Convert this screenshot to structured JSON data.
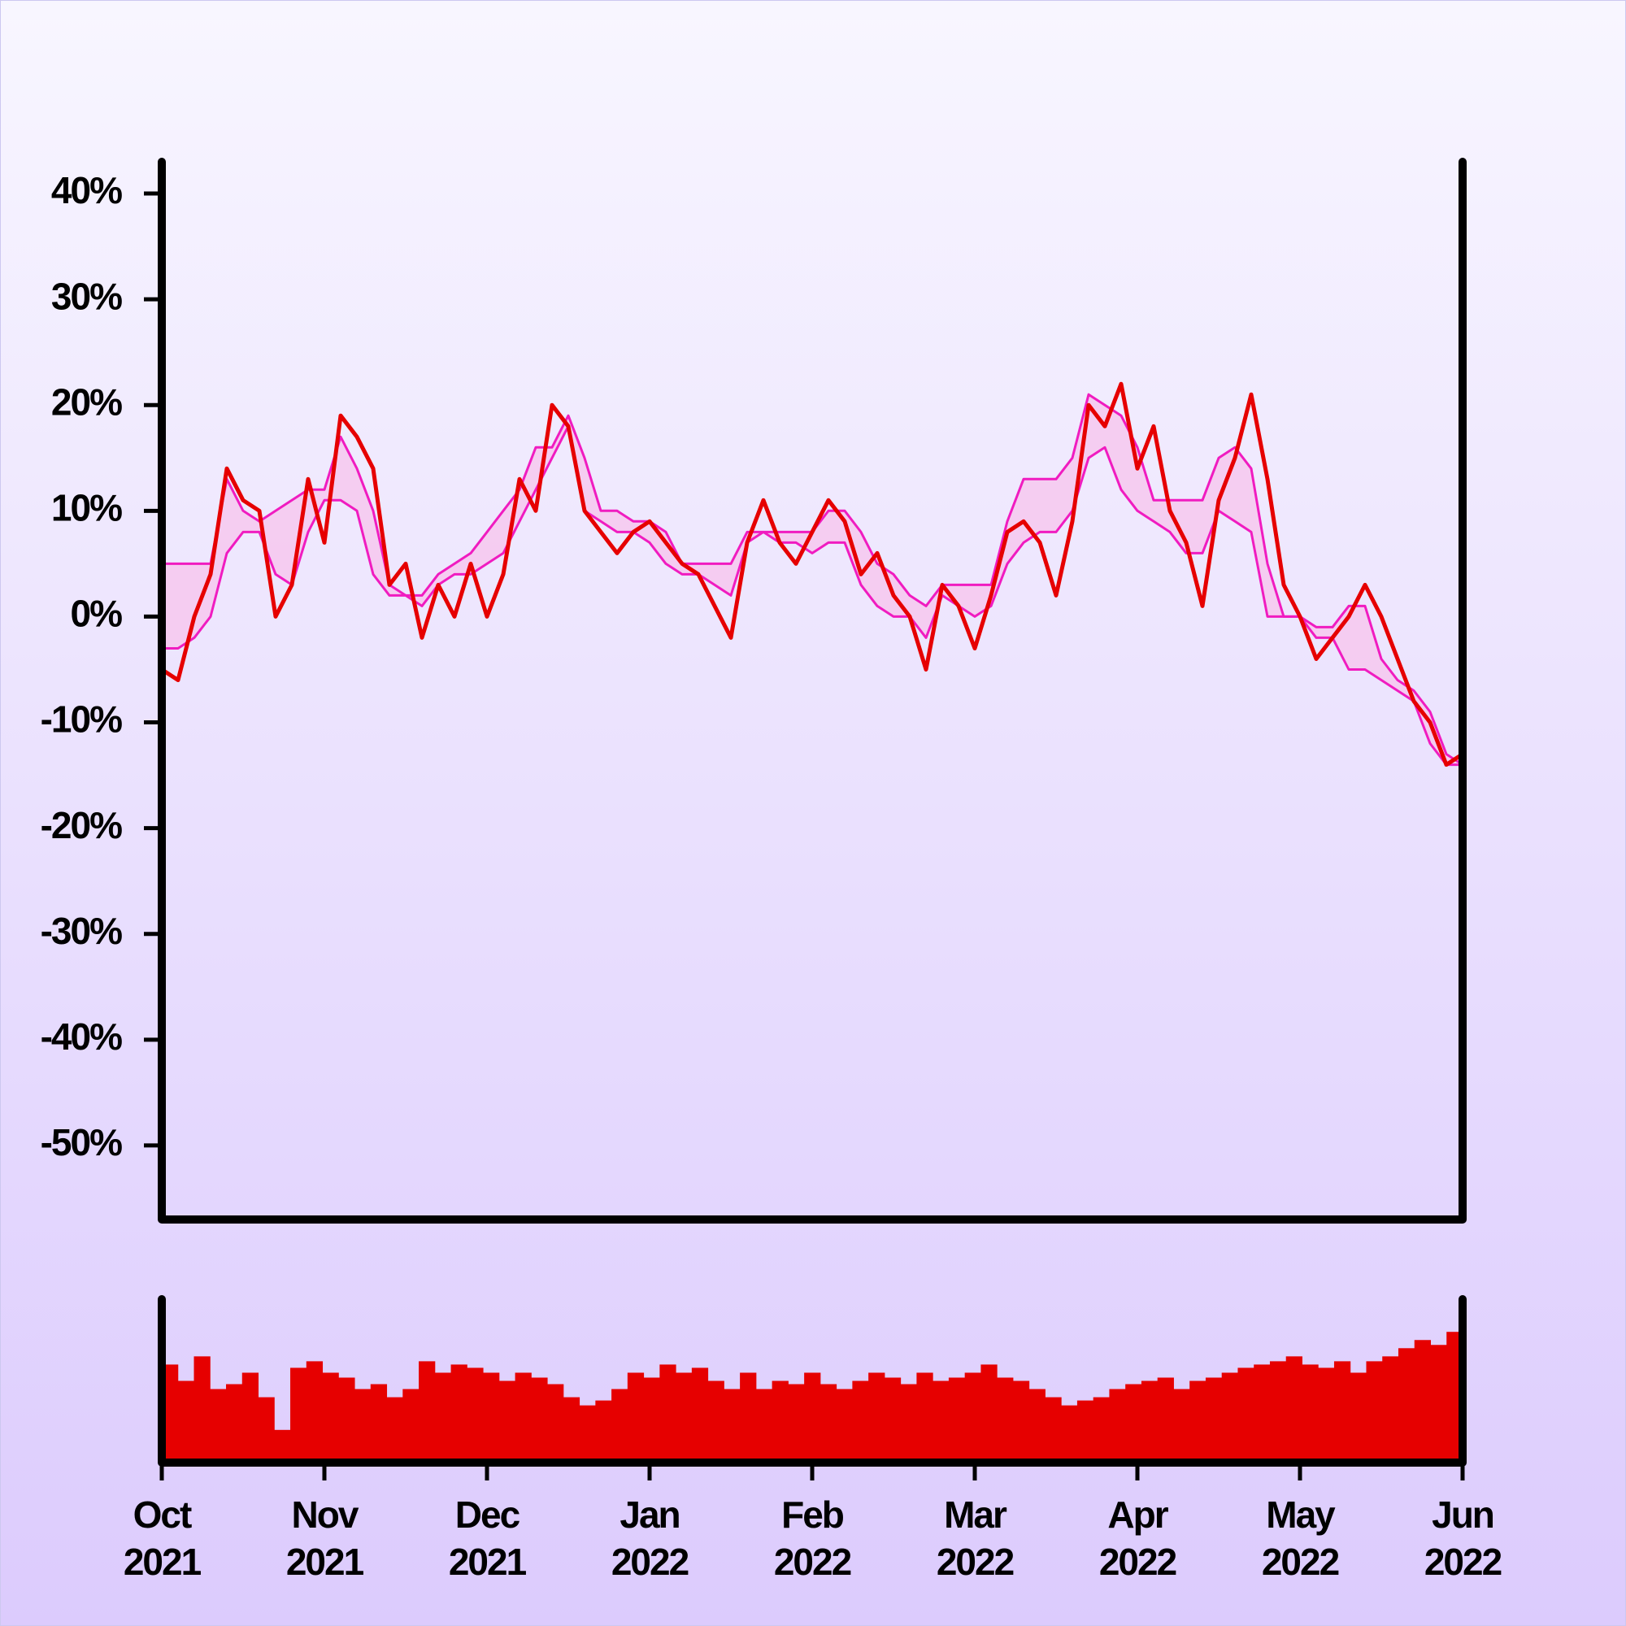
{
  "chart_data": {
    "type": "line",
    "color": "#e60000",
    "band_color": "#f01cc0",
    "band_fill": "#f6c6ee",
    "volume_color": "#e60000",
    "ylim": [
      -57,
      43
    ],
    "yticks": [
      {
        "value": 40,
        "label": "40%"
      },
      {
        "value": 30,
        "label": "30%"
      },
      {
        "value": 20,
        "label": "20%"
      },
      {
        "value": 10,
        "label": "10%"
      },
      {
        "value": 0,
        "label": "0%"
      },
      {
        "value": -10,
        "label": "-10%"
      },
      {
        "value": -20,
        "label": "-20%"
      },
      {
        "value": -30,
        "label": "-30%"
      },
      {
        "value": -40,
        "label": "-40%"
      },
      {
        "value": -50,
        "label": "-50%"
      }
    ],
    "xticks": [
      [
        "Oct",
        "2021"
      ],
      [
        "Nov",
        "2021"
      ],
      [
        "Dec",
        "2021"
      ],
      [
        "Jan",
        "2022"
      ],
      [
        "Feb",
        "2022"
      ],
      [
        "Mar",
        "2022"
      ],
      [
        "Apr",
        "2022"
      ],
      [
        "May",
        "2022"
      ],
      [
        "Jun",
        "2022"
      ]
    ],
    "values": [
      -5,
      -6,
      0,
      4,
      14,
      11,
      10,
      0,
      3,
      13,
      7,
      19,
      17,
      14,
      3,
      5,
      -2,
      3,
      0,
      5,
      0,
      4,
      13,
      10,
      20,
      18,
      10,
      8,
      6,
      8,
      9,
      7,
      5,
      4,
      1,
      -2,
      7,
      11,
      7,
      5,
      8,
      11,
      9,
      4,
      6,
      2,
      0,
      -5,
      3,
      1,
      -3,
      2,
      8,
      9,
      7,
      2,
      9,
      20,
      18,
      22,
      14,
      18,
      10,
      7,
      1,
      11,
      15,
      21,
      13,
      3,
      0,
      -4,
      -2,
      0,
      3,
      0,
      -4,
      -8,
      -10,
      -14,
      -13
    ],
    "band_upper": [
      5,
      5,
      5,
      5,
      13,
      10,
      9,
      10,
      11,
      12,
      12,
      17,
      14,
      10,
      3,
      2,
      2,
      4,
      5,
      6,
      8,
      10,
      12,
      16,
      16,
      19,
      15,
      10,
      10,
      9,
      9,
      8,
      5,
      5,
      5,
      5,
      8,
      8,
      8,
      8,
      8,
      10,
      10,
      8,
      5,
      4,
      2,
      1,
      3,
      3,
      3,
      3,
      9,
      13,
      13,
      13,
      15,
      21,
      20,
      19,
      16,
      11,
      11,
      11,
      11,
      15,
      16,
      14,
      5,
      0,
      0,
      -1,
      -1,
      1,
      1,
      -4,
      -6,
      -7,
      -9,
      -13,
      -14
    ],
    "band_lower": [
      -3,
      -3,
      -2,
      0,
      6,
      8,
      8,
      4,
      3,
      8,
      11,
      11,
      10,
      4,
      2,
      2,
      1,
      3,
      4,
      4,
      5,
      6,
      9,
      12,
      15,
      18,
      10,
      9,
      8,
      8,
      7,
      5,
      4,
      4,
      3,
      2,
      7,
      8,
      7,
      7,
      6,
      7,
      7,
      3,
      1,
      0,
      0,
      -2,
      2,
      1,
      0,
      1,
      5,
      7,
      8,
      8,
      10,
      15,
      16,
      12,
      10,
      9,
      8,
      6,
      6,
      10,
      9,
      8,
      0,
      0,
      0,
      -2,
      -2,
      -5,
      -5,
      -6,
      -7,
      -8,
      -12,
      -14,
      -14
    ],
    "volume_ylim": [
      0,
      100
    ],
    "volume": [
      60,
      50,
      65,
      45,
      48,
      55,
      40,
      20,
      58,
      62,
      55,
      52,
      45,
      48,
      40,
      45,
      62,
      55,
      60,
      58,
      55,
      50,
      55,
      52,
      48,
      40,
      35,
      38,
      45,
      55,
      52,
      60,
      55,
      58,
      50,
      45,
      55,
      45,
      50,
      48,
      55,
      48,
      45,
      50,
      55,
      52,
      48,
      55,
      50,
      52,
      55,
      60,
      52,
      50,
      45,
      40,
      35,
      38,
      40,
      45,
      48,
      50,
      52,
      45,
      50,
      52,
      55,
      58,
      60,
      62,
      65,
      60,
      58,
      62,
      55,
      62,
      65,
      70,
      75,
      72,
      80
    ]
  }
}
